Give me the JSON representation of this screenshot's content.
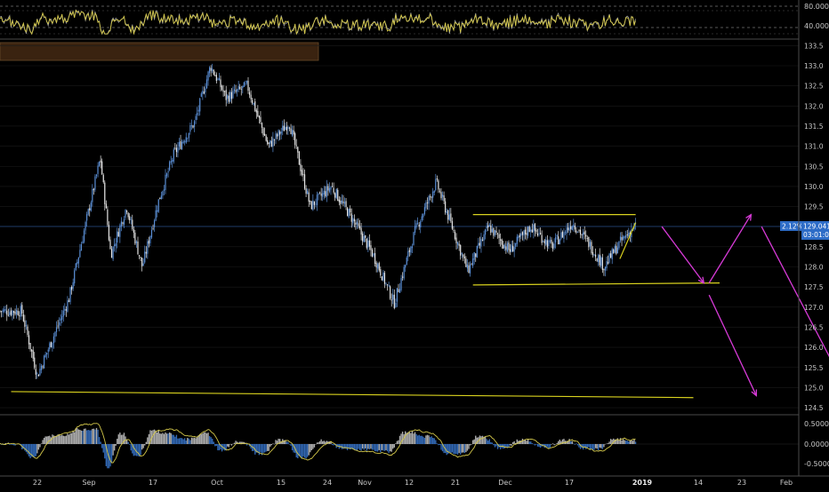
{
  "colors": {
    "background": "#000000",
    "grid": "#1a1a1a",
    "separator": "#4a4a4a",
    "axis_text": "#c8c8c8",
    "bull_candle": "#5b8fd6",
    "bear_candle": "#e6e6e6",
    "rsi_line": "#d4c84a",
    "rsi_price": "#9a9a9a",
    "trendline": "#d9d21e",
    "projection": "#d63ad6",
    "price_badge": "#2d6cc7",
    "price_line": "#2d4f8a",
    "banner": "#3a2310",
    "macd_bull": "#3a78d0",
    "macd_bear": "#c8c8c8",
    "macd_signal": "#d4c84a"
  },
  "rsi_panel": {
    "ticks": [
      "80.000",
      "40.000"
    ]
  },
  "price_panel": {
    "current_price_label": "129.041",
    "change_label": "2.12%",
    "countdown_label": "03:01:01"
  },
  "macd_panel": {
    "ticks": [
      "0.5000",
      "0.0000",
      "-0.5000"
    ]
  },
  "x_axis": {
    "labels": [
      "22",
      "Sep",
      "17",
      "Oct",
      "15",
      "24",
      "Nov",
      "12",
      "21",
      "Dec",
      "17",
      "2019",
      "14",
      "23",
      "Feb"
    ]
  },
  "chart_data": {
    "type": "candlestick",
    "y_axis_ticks": [
      133.5,
      133.0,
      132.5,
      132.0,
      131.5,
      131.0,
      130.5,
      130.0,
      129.5,
      128.5,
      128.0,
      127.5,
      127.0,
      126.5,
      126.0,
      125.5,
      125.0,
      124.5
    ],
    "price_path_keypoints": [
      {
        "date": "Aug 19",
        "value": 126.9
      },
      {
        "date": "Aug 22",
        "value": 125.3
      },
      {
        "date": "Aug 28",
        "value": 127.2
      },
      {
        "date": "Sep 3",
        "value": 130.7
      },
      {
        "date": "Sep 5",
        "value": 128.3
      },
      {
        "date": "Sep 8",
        "value": 129.5
      },
      {
        "date": "Sep 11",
        "value": 128.0
      },
      {
        "date": "Sep 14",
        "value": 129.6
      },
      {
        "date": "Sep 17",
        "value": 130.8
      },
      {
        "date": "Sep 21",
        "value": 131.6
      },
      {
        "date": "Sep 24",
        "value": 133.0
      },
      {
        "date": "Sep 27",
        "value": 132.2
      },
      {
        "date": "Oct 1",
        "value": 132.5
      },
      {
        "date": "Oct 5",
        "value": 131.0
      },
      {
        "date": "Oct 9",
        "value": 131.6
      },
      {
        "date": "Oct 13",
        "value": 129.5
      },
      {
        "date": "Oct 17",
        "value": 130.0
      },
      {
        "date": "Oct 21",
        "value": 129.2
      },
      {
        "date": "Oct 25",
        "value": 128.3
      },
      {
        "date": "Oct 29",
        "value": 127.1
      },
      {
        "date": "Nov 2",
        "value": 128.9
      },
      {
        "date": "Nov 6",
        "value": 130.1
      },
      {
        "date": "Nov 9",
        "value": 129.0
      },
      {
        "date": "Nov 12",
        "value": 127.9
      },
      {
        "date": "Nov 16",
        "value": 129.0
      },
      {
        "date": "Nov 20",
        "value": 128.4
      },
      {
        "date": "Nov 24",
        "value": 129.0
      },
      {
        "date": "Nov 28",
        "value": 128.5
      },
      {
        "date": "Dec 2",
        "value": 129.1
      },
      {
        "date": "Dec 5",
        "value": 128.6
      },
      {
        "date": "Dec 8",
        "value": 128.0
      },
      {
        "date": "Dec 11",
        "value": 128.6
      },
      {
        "date": "Dec 14",
        "value": 129.04
      }
    ],
    "drawings": [
      {
        "kind": "channel-top",
        "from": {
          "date": "Nov 13",
          "value": 129.3
        },
        "to": {
          "date": "Dec 14",
          "value": 129.3
        }
      },
      {
        "kind": "channel-bottom",
        "from": {
          "date": "Nov 13",
          "value": 127.55
        },
        "to": {
          "date": "Dec 30",
          "value": 127.6
        }
      },
      {
        "kind": "support-line",
        "from": {
          "date": "Aug 17",
          "value": 124.9
        },
        "to": {
          "date": "Dec 25",
          "value": 124.75
        }
      },
      {
        "kind": "wedge-line",
        "from": {
          "date": "Dec 11",
          "value": 128.2
        },
        "to": {
          "date": "Dec 14",
          "value": 129.1
        }
      },
      {
        "kind": "projection",
        "from": {
          "date": "Dec 19",
          "value": 129.0
        },
        "to": {
          "date": "Dec 27",
          "value": 127.6
        }
      },
      {
        "kind": "projection",
        "from": {
          "date": "Dec 28",
          "value": 127.6
        },
        "to": {
          "date": "Jan 5",
          "value": 129.3
        }
      },
      {
        "kind": "projection",
        "from": {
          "date": "Dec 28",
          "value": 127.3
        },
        "to": {
          "date": "Jan 6",
          "value": 124.8
        }
      },
      {
        "kind": "projection",
        "from": {
          "date": "Jan 7",
          "value": 129.0
        },
        "to": {
          "date": "Jan 23",
          "value": 125.0
        }
      }
    ],
    "rsi_ylim": [
      20,
      100
    ],
    "macd_ylim": [
      -0.7,
      0.7
    ]
  }
}
